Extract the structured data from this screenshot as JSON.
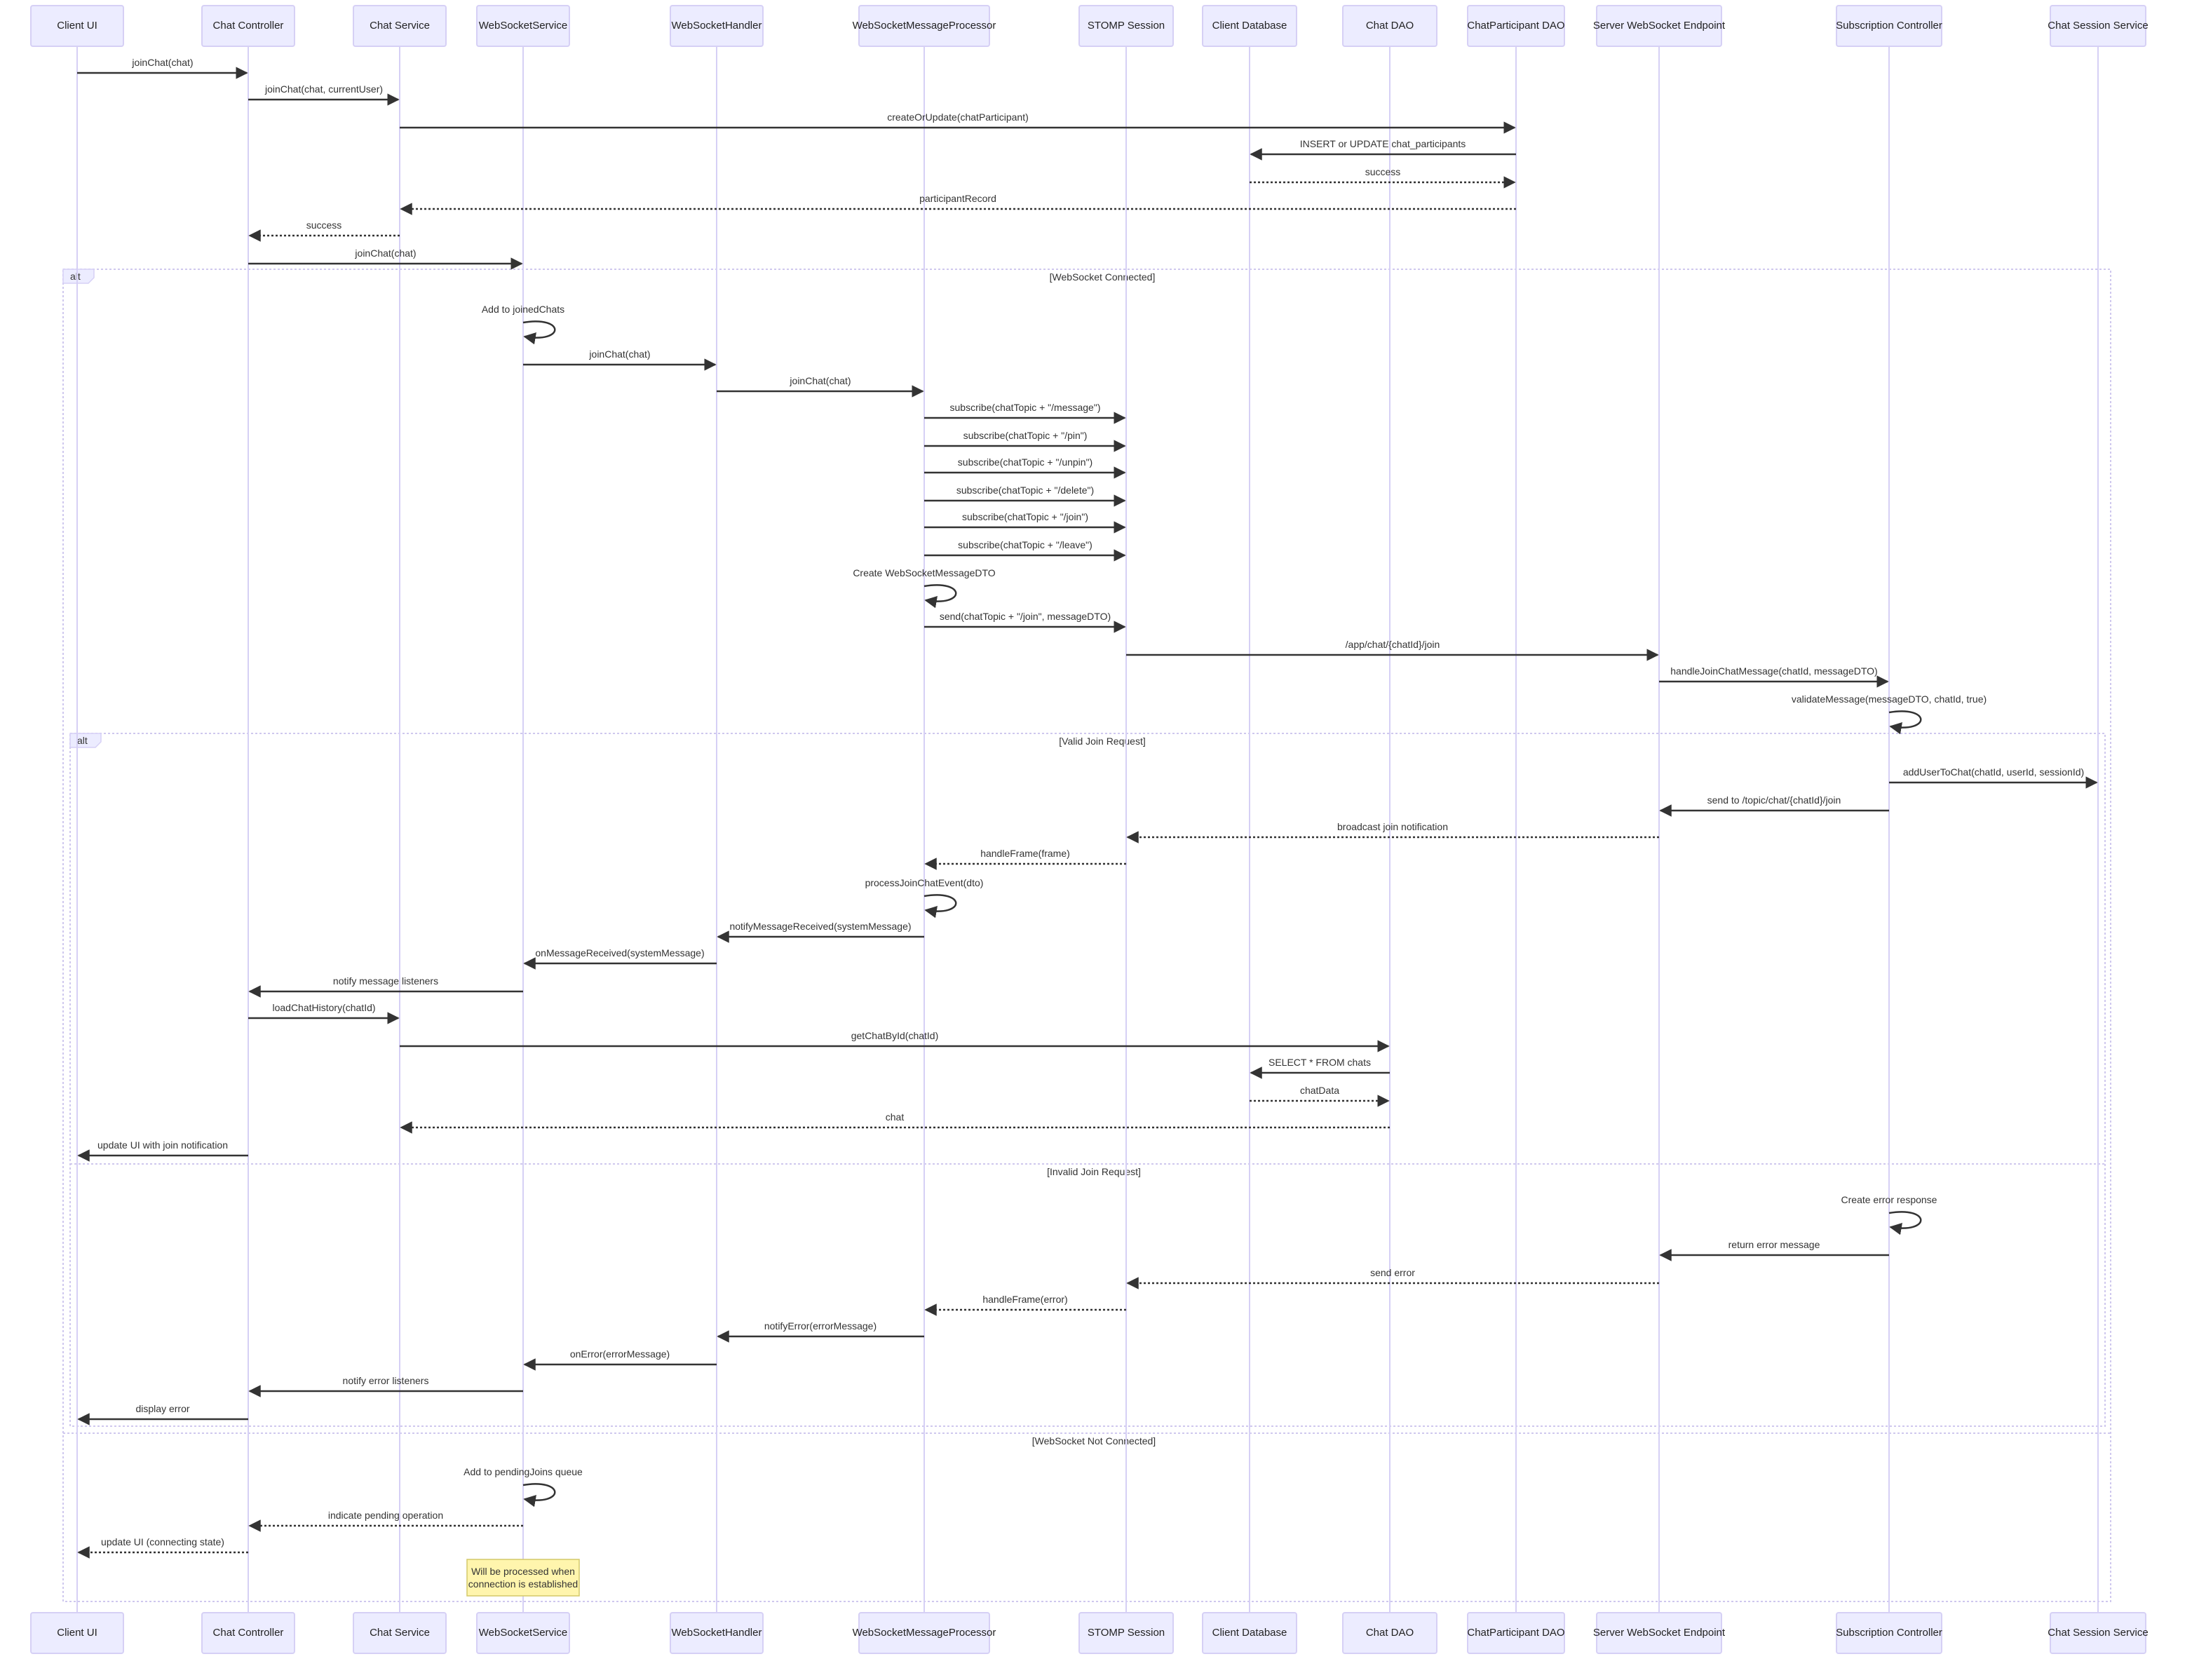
{
  "participants": [
    "Client UI",
    "Chat Controller",
    "Chat Service",
    "WebSocketService",
    "WebSocketHandler",
    "WebSocketMessageProcessor",
    "STOMP Session",
    "Client Database",
    "Chat DAO",
    "ChatParticipant DAO",
    "Server WebSocket Endpoint",
    "Subscription Controller",
    "Chat Session Service"
  ],
  "messages": [
    {
      "from": 0,
      "to": 1,
      "text": "joinChat(chat)",
      "dashed": false
    },
    {
      "from": 1,
      "to": 2,
      "text": "joinChat(chat, currentUser)",
      "dashed": false
    },
    {
      "from": 2,
      "to": 9,
      "text": "createOrUpdate(chatParticipant)",
      "dashed": false
    },
    {
      "from": 9,
      "to": 7,
      "text": "INSERT or UPDATE chat_participants",
      "dashed": false
    },
    {
      "from": 7,
      "to": 9,
      "text": "success",
      "dashed": true
    },
    {
      "from": 9,
      "to": 2,
      "text": "participantRecord",
      "dashed": true
    },
    {
      "from": 2,
      "to": 1,
      "text": "success",
      "dashed": true
    },
    {
      "from": 1,
      "to": 3,
      "text": "joinChat(chat)",
      "dashed": false
    },
    {
      "from": 3,
      "to": 3,
      "text": "Add to joinedChats",
      "dashed": false
    },
    {
      "from": 3,
      "to": 4,
      "text": "joinChat(chat)",
      "dashed": false
    },
    {
      "from": 4,
      "to": 5,
      "text": "joinChat(chat)",
      "dashed": false
    },
    {
      "from": 5,
      "to": 6,
      "text": "subscribe(chatTopic + \"/message\")",
      "dashed": false
    },
    {
      "from": 5,
      "to": 6,
      "text": "subscribe(chatTopic + \"/pin\")",
      "dashed": false
    },
    {
      "from": 5,
      "to": 6,
      "text": "subscribe(chatTopic + \"/unpin\")",
      "dashed": false
    },
    {
      "from": 5,
      "to": 6,
      "text": "subscribe(chatTopic + \"/delete\")",
      "dashed": false
    },
    {
      "from": 5,
      "to": 6,
      "text": "subscribe(chatTopic + \"/join\")",
      "dashed": false
    },
    {
      "from": 5,
      "to": 6,
      "text": "subscribe(chatTopic + \"/leave\")",
      "dashed": false
    },
    {
      "from": 5,
      "to": 5,
      "text": "Create WebSocketMessageDTO",
      "dashed": false
    },
    {
      "from": 5,
      "to": 6,
      "text": "send(chatTopic + \"/join\", messageDTO)",
      "dashed": false
    },
    {
      "from": 6,
      "to": 10,
      "text": "/app/chat/{chatId}/join",
      "dashed": false
    },
    {
      "from": 10,
      "to": 11,
      "text": "handleJoinChatMessage(chatId, messageDTO)",
      "dashed": false
    },
    {
      "from": 11,
      "to": 11,
      "text": "validateMessage(messageDTO, chatId, true)",
      "dashed": false
    },
    {
      "from": 11,
      "to": 12,
      "text": "addUserToChat(chatId, userId, sessionId)",
      "dashed": false
    },
    {
      "from": 11,
      "to": 10,
      "text": "send to /topic/chat/{chatId}/join",
      "dashed": false
    },
    {
      "from": 10,
      "to": 6,
      "text": "broadcast join notification",
      "dashed": true
    },
    {
      "from": 6,
      "to": 5,
      "text": "handleFrame(frame)",
      "dashed": true
    },
    {
      "from": 5,
      "to": 5,
      "text": "processJoinChatEvent(dto)",
      "dashed": false
    },
    {
      "from": 5,
      "to": 4,
      "text": "notifyMessageReceived(systemMessage)",
      "dashed": false
    },
    {
      "from": 4,
      "to": 3,
      "text": "onMessageReceived(systemMessage)",
      "dashed": false
    },
    {
      "from": 3,
      "to": 1,
      "text": "notify message listeners",
      "dashed": false
    },
    {
      "from": 1,
      "to": 2,
      "text": "loadChatHistory(chatId)",
      "dashed": false
    },
    {
      "from": 2,
      "to": 8,
      "text": "getChatById(chatId)",
      "dashed": false
    },
    {
      "from": 8,
      "to": 7,
      "text": "SELECT * FROM chats",
      "dashed": false
    },
    {
      "from": 7,
      "to": 8,
      "text": "chatData",
      "dashed": true
    },
    {
      "from": 8,
      "to": 2,
      "text": "chat",
      "dashed": true
    },
    {
      "from": 1,
      "to": 0,
      "text": "update UI with join notification",
      "dashed": false
    },
    {
      "from": 11,
      "to": 11,
      "text": "Create error response",
      "dashed": false
    },
    {
      "from": 11,
      "to": 10,
      "text": "return error message",
      "dashed": false
    },
    {
      "from": 10,
      "to": 6,
      "text": "send error",
      "dashed": true
    },
    {
      "from": 6,
      "to": 5,
      "text": "handleFrame(error)",
      "dashed": true
    },
    {
      "from": 5,
      "to": 4,
      "text": "notifyError(errorMessage)",
      "dashed": false
    },
    {
      "from": 4,
      "to": 3,
      "text": "onError(errorMessage)",
      "dashed": false
    },
    {
      "from": 3,
      "to": 1,
      "text": "notify error listeners",
      "dashed": false
    },
    {
      "from": 1,
      "to": 0,
      "text": "display error",
      "dashed": false
    },
    {
      "from": 3,
      "to": 3,
      "text": "Add to pendingJoins queue",
      "dashed": false
    },
    {
      "from": 3,
      "to": 1,
      "text": "indicate pending operation",
      "dashed": true
    },
    {
      "from": 1,
      "to": 0,
      "text": "update UI (connecting state)",
      "dashed": true
    }
  ],
  "frames": [
    {
      "type": "alt",
      "sections": [
        "[WebSocket Connected]",
        "[WebSocket Not Connected]"
      ]
    },
    {
      "type": "alt",
      "sections": [
        "[Valid Join Request]",
        "[Invalid Join Request]"
      ]
    }
  ],
  "note": {
    "over": 3,
    "lines": [
      "Will be processed when",
      "connection is established"
    ]
  },
  "colors": {
    "actor_fill": "#ECECFF",
    "actor_border": "#D6D0F5",
    "note_fill": "#FFF5AD",
    "line": "#333333"
  }
}
